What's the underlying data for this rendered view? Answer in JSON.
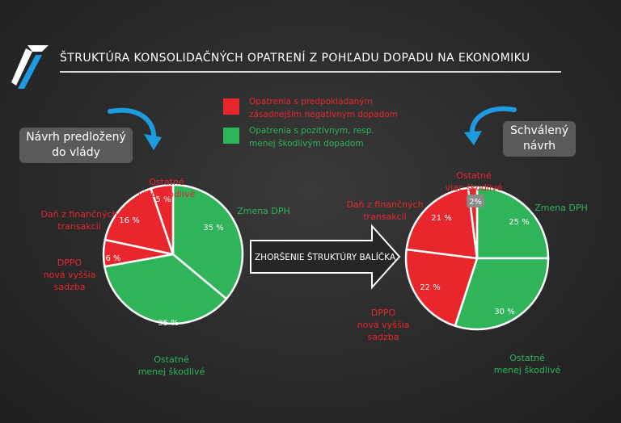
{
  "title": "ŠTRUKTÚRA KONSOLIDAČNÝCH OPATRENÍ Z POHĽADU DOPADU NA EKONOMIKU",
  "colors": {
    "negative": "#e8262c",
    "positive": "#2fb45a",
    "background": "#2b2b2b",
    "accent_blue": "#1e9be0"
  },
  "legend": [
    {
      "color": "#e8262c",
      "line1": "Opatrenia s predpokladaným",
      "line2": "zásadnejším negatívnym dopadom"
    },
    {
      "color": "#2fb45a",
      "line1": "Opatrenia s pozitívnym, resp.",
      "line2": "menej škodlivým dopadom"
    }
  ],
  "arrow_text": "ZHORŠENIE ŠTRUKTÚRY BALÍČKA",
  "left_pill": {
    "line1": "Návrh predložený",
    "line2": "do vlády"
  },
  "right_pill": {
    "line1": "Schválený",
    "line2": "návrh"
  },
  "chart_data": [
    {
      "type": "pie",
      "slices": [
        {
          "label": "Zmena DPH",
          "value": 35,
          "value_label": "35 %",
          "color": "#2fb45a",
          "label_lines": [
            "Zmena DPH"
          ]
        },
        {
          "label": "Ostatné menej škodlivé",
          "value": 35,
          "value_label": "35 %",
          "color": "#2fb45a",
          "label_lines": [
            "Ostatné",
            "menej škodlivé"
          ]
        },
        {
          "label": "DPPO nová vyššia sadzba",
          "value": 6,
          "value_label": "6 %",
          "color": "#e8262c",
          "label_lines": [
            "DPPO",
            "nová vyššia",
            "sadzba"
          ]
        },
        {
          "label": "Daň z finančných transakcií",
          "value": 16,
          "value_label": "16 %",
          "color": "#e8262c",
          "label_lines": [
            "Daň z finančných",
            "transakcií"
          ]
        },
        {
          "label": "Ostatné viac škodlivé",
          "value": 5,
          "value_label": "5 %",
          "color": "#e8262c",
          "label_lines": [
            "Ostatné",
            "viac škodlivé"
          ]
        }
      ]
    },
    {
      "type": "pie",
      "slices": [
        {
          "label": "Zmena DPH",
          "value": 25,
          "value_label": "25 %",
          "color": "#2fb45a",
          "label_lines": [
            "Zmena DPH"
          ]
        },
        {
          "label": "Ostatné menej škodlivé",
          "value": 30,
          "value_label": "30 %",
          "color": "#2fb45a",
          "label_lines": [
            "Ostatné",
            "menej škodlivé"
          ]
        },
        {
          "label": "DPPO nová vyššia sadzba",
          "value": 22,
          "value_label": "22 %",
          "color": "#e8262c",
          "label_lines": [
            "DPPO",
            "nová vyššia",
            "sadzba"
          ]
        },
        {
          "label": "Daň z finančných transakcií",
          "value": 21,
          "value_label": "21 %",
          "color": "#e8262c",
          "label_lines": [
            "Daň z finančných",
            "transakcií"
          ]
        },
        {
          "label": "Ostatné viac škodlivé",
          "value": 2,
          "value_label": "2%",
          "color": "#e8262c",
          "label_lines": [
            "Ostatné",
            "viac škodlivé"
          ]
        }
      ]
    }
  ]
}
